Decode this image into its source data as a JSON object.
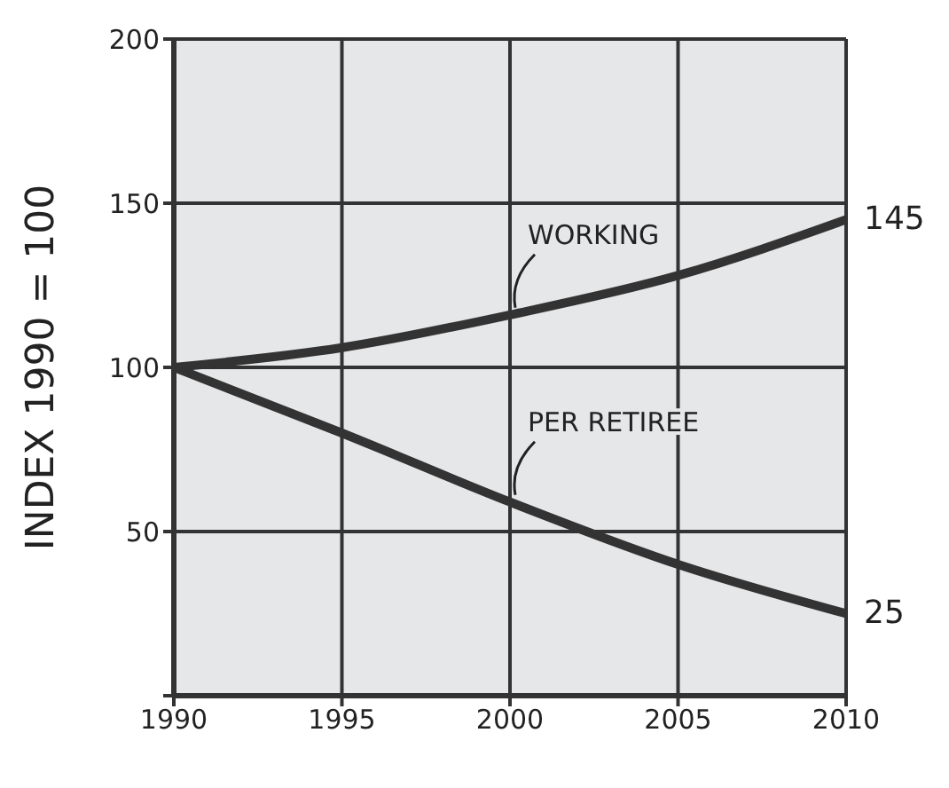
{
  "chart_data": {
    "type": "line",
    "ylabel": "INDEX 1990 = 100",
    "x": [
      1990,
      1995,
      2000,
      2005,
      2010
    ],
    "series": [
      {
        "color": "#333333",
        "values": [
          100,
          106,
          116,
          128,
          145
        ],
        "value_labels": [
          null,
          null,
          null,
          null,
          "145"
        ]
      },
      {
        "color": "#333333",
        "values": [
          100,
          80,
          59,
          40,
          25
        ],
        "value_labels": [
          null,
          null,
          null,
          null,
          "25"
        ]
      }
    ],
    "annotations": [
      {
        "text": "WORKING",
        "x": 2000,
        "y": 116
      },
      {
        "text": "PER RETIREE",
        "x": 2000,
        "y": 59
      }
    ],
    "xlim": [
      1990,
      2010
    ],
    "xticks": [
      1990,
      1995,
      2000,
      2005,
      2010
    ],
    "ylim": [
      0,
      200
    ],
    "yticks": [
      {
        "value": 0,
        "label": null
      },
      50,
      100,
      150,
      200
    ],
    "grid": true,
    "marker": "none",
    "line_style": "solid"
  }
}
